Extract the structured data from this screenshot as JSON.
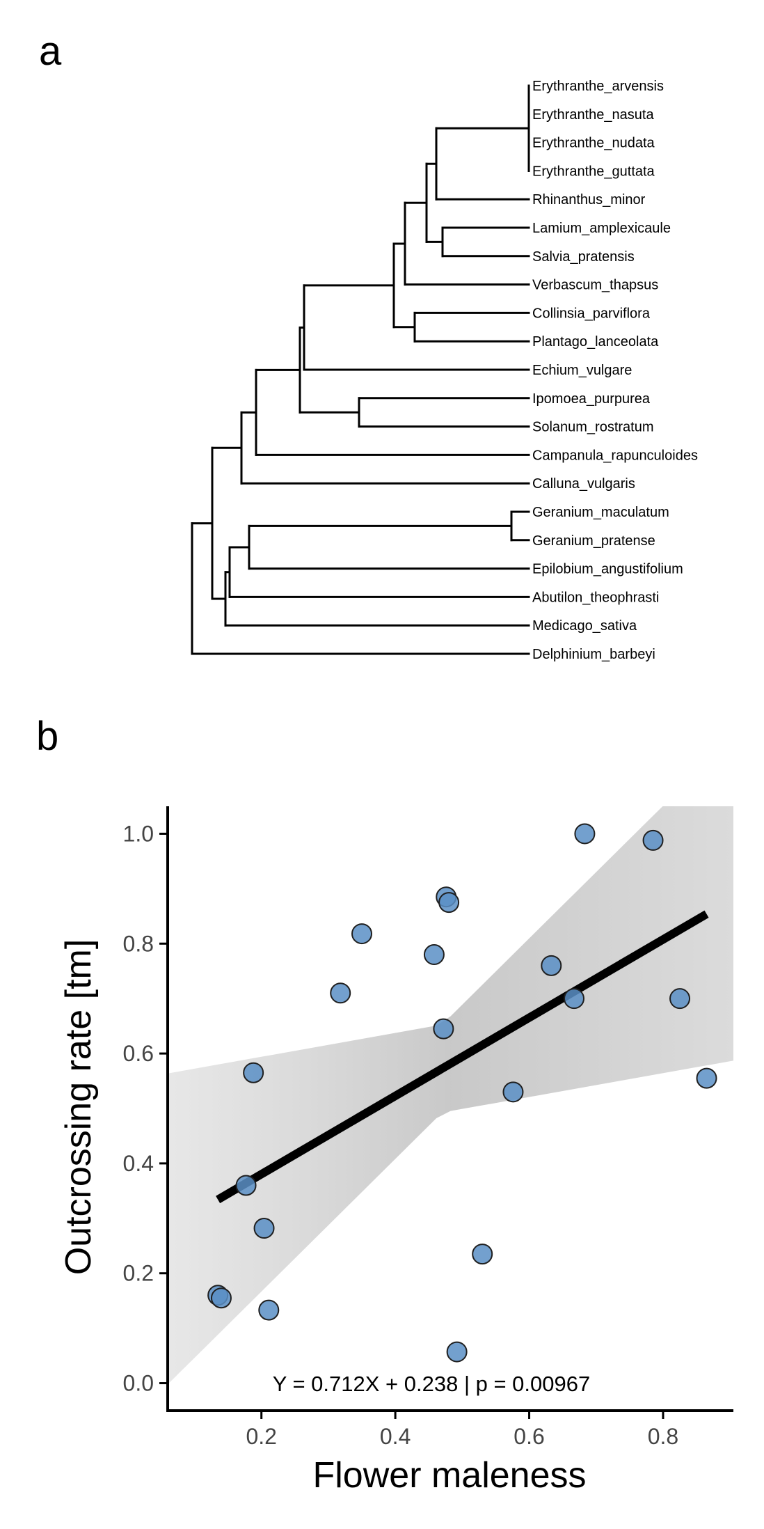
{
  "panels": {
    "a_label": "a",
    "b_label": "b"
  },
  "chart_data": [
    {
      "type": "tree",
      "tips": [
        "Erythranthe_arvensis",
        "Erythranthe_nasuta",
        "Erythranthe_nudata",
        "Erythranthe_guttata",
        "Rhinanthus_minor",
        "Lamium_amplexicaule",
        "Salvia_pratensis",
        "Verbascum_thapsus",
        "Collinsia_parviflora",
        "Plantago_lanceolata",
        "Echium_vulgare",
        "Ipomoea_purpurea",
        "Solanum_rostratum",
        "Campanula_rapunculoides",
        "Calluna_vulgaris",
        "Geranium_maculatum",
        "Geranium_pratense",
        "Epilobium_angustifolium",
        "Abutilon_theophrasti",
        "Medicago_sativa",
        "Delphinium_barbeyi"
      ]
    },
    {
      "type": "scatter",
      "xlabel": "Flower maleness",
      "ylabel": "Outcrossing rate [tm]",
      "xlim": [
        0.06,
        0.905
      ],
      "ylim": [
        -0.05,
        1.05
      ],
      "xticks": [
        0.2,
        0.4,
        0.6,
        0.8
      ],
      "yticks": [
        0.0,
        0.2,
        0.4,
        0.6,
        0.8,
        1.0
      ],
      "xtick_labels": [
        "0.2",
        "0.4",
        "0.6",
        "0.8"
      ],
      "ytick_labels": [
        "0.0",
        "0.2",
        "0.4",
        "0.6",
        "0.8",
        "1.0"
      ],
      "points": [
        {
          "x": 0.135,
          "y": 0.16
        },
        {
          "x": 0.14,
          "y": 0.155
        },
        {
          "x": 0.177,
          "y": 0.36
        },
        {
          "x": 0.188,
          "y": 0.565
        },
        {
          "x": 0.204,
          "y": 0.282
        },
        {
          "x": 0.211,
          "y": 0.133
        },
        {
          "x": 0.318,
          "y": 0.71
        },
        {
          "x": 0.35,
          "y": 0.818
        },
        {
          "x": 0.458,
          "y": 0.78
        },
        {
          "x": 0.472,
          "y": 0.645
        },
        {
          "x": 0.476,
          "y": 0.885
        },
        {
          "x": 0.48,
          "y": 0.875
        },
        {
          "x": 0.492,
          "y": 0.057
        },
        {
          "x": 0.53,
          "y": 0.235
        },
        {
          "x": 0.576,
          "y": 0.53
        },
        {
          "x": 0.633,
          "y": 0.76
        },
        {
          "x": 0.667,
          "y": 0.7
        },
        {
          "x": 0.683,
          "y": 1.0
        },
        {
          "x": 0.785,
          "y": 0.988
        },
        {
          "x": 0.825,
          "y": 0.7
        },
        {
          "x": 0.865,
          "y": 0.555
        }
      ],
      "fit": {
        "slope": 0.712,
        "intercept": 0.238,
        "x_range": [
          0.135,
          0.865
        ]
      },
      "annotation": "Y = 0.712X + 0.238 | p = 0.00967",
      "point_color": "#5b8fc5",
      "point_edge_color": "#1f1f1f",
      "line_color": "#000000",
      "band_color": "#c8c8c8",
      "grid": false
    }
  ]
}
